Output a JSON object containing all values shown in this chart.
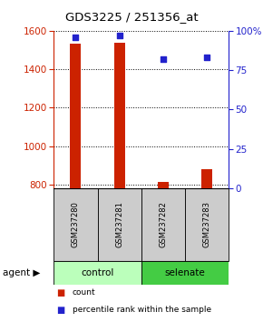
{
  "title": "GDS3225 / 251356_at",
  "samples": [
    "GSM237280",
    "GSM237281",
    "GSM237282",
    "GSM237283"
  ],
  "group_labels": [
    "control",
    "selenate"
  ],
  "bar_counts": [
    1530,
    1535,
    815,
    880
  ],
  "percentile_ranks": [
    96,
    97,
    82,
    83
  ],
  "ylim_left": [
    780,
    1600
  ],
  "ylim_right": [
    0,
    100
  ],
  "yticks_left": [
    800,
    1000,
    1200,
    1400,
    1600
  ],
  "yticks_right": [
    0,
    25,
    50,
    75,
    100
  ],
  "ytick_right_labels": [
    "0",
    "25",
    "50",
    "75",
    "100%"
  ],
  "bar_color": "#cc2200",
  "dot_color": "#2222cc",
  "bar_width": 0.25,
  "control_color": "#bbffbb",
  "selenate_color": "#44cc44",
  "sample_box_color": "#cccccc",
  "legend_red_label": "count",
  "legend_blue_label": "percentile rank within the sample",
  "agent_label": "agent"
}
